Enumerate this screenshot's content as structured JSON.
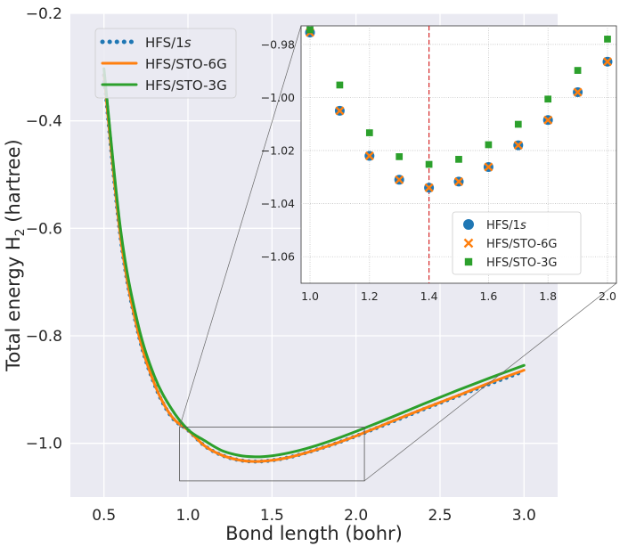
{
  "chart_data": [
    {
      "type": "line",
      "xlabel": "Bond length (bohr)",
      "ylabel": "Total energy H",
      "ylabel_subscript": "2",
      "ylabel_unit": " (hartree)",
      "xlim": [
        0.3,
        3.2
      ],
      "ylim": [
        -1.1,
        -0.2
      ],
      "xticks": [
        0.5,
        1.0,
        1.5,
        2.0,
        2.5,
        3.0
      ],
      "xtick_labels": [
        "0.5",
        "1.0",
        "1.5",
        "2.0",
        "2.5",
        "3.0"
      ],
      "yticks": [
        -1.0,
        -0.8,
        -0.6,
        -0.4,
        -0.2
      ],
      "ytick_labels": [
        "−1.0",
        "−0.8",
        "−0.6",
        "−0.4",
        "−0.2"
      ],
      "grid": true,
      "legend_position": "upper-left",
      "series": [
        {
          "name": "HFS/1s",
          "name_main": "HFS/1",
          "name_italic": "s",
          "style": "dotted",
          "color": "#1f77b4",
          "x": [
            0.5,
            0.6,
            0.7,
            0.8,
            0.9,
            1.0,
            1.1,
            1.2,
            1.3,
            1.4,
            1.5,
            1.6,
            1.7,
            1.8,
            1.9,
            2.0,
            2.2,
            2.4,
            2.6,
            2.8,
            3.0
          ],
          "y": [
            -0.315,
            -0.62,
            -0.79,
            -0.89,
            -0.95,
            -0.9755,
            -1.005,
            -1.022,
            -1.031,
            -1.034,
            -1.0317,
            -1.0262,
            -1.018,
            -1.0085,
            -0.998,
            -0.9865,
            -0.962,
            -0.937,
            -0.913,
            -0.889,
            -0.866
          ]
        },
        {
          "name": "HFS/STO-6G",
          "style": "solid",
          "color": "#ff7f0e",
          "x": [
            0.5,
            0.6,
            0.7,
            0.8,
            0.9,
            1.0,
            1.1,
            1.2,
            1.3,
            1.4,
            1.5,
            1.6,
            1.7,
            1.8,
            1.9,
            2.0,
            2.2,
            2.4,
            2.6,
            2.8,
            3.0
          ],
          "y": [
            -0.314,
            -0.619,
            -0.789,
            -0.889,
            -0.949,
            -0.9755,
            -1.005,
            -1.022,
            -1.031,
            -1.034,
            -1.0317,
            -1.0262,
            -1.018,
            -1.0085,
            -0.998,
            -0.9865,
            -0.961,
            -0.936,
            -0.912,
            -0.887,
            -0.864
          ]
        },
        {
          "name": "HFS/STO-3G",
          "style": "solid",
          "color": "#2ca02c",
          "x": [
            0.5,
            0.6,
            0.7,
            0.8,
            0.9,
            1.0,
            1.1,
            1.2,
            1.3,
            1.4,
            1.5,
            1.6,
            1.7,
            1.8,
            1.9,
            2.0,
            2.2,
            2.4,
            2.6,
            2.8,
            3.0
          ],
          "y": [
            -0.303,
            -0.605,
            -0.775,
            -0.875,
            -0.935,
            -0.9745,
            -0.9953,
            -1.0133,
            -1.0223,
            -1.0252,
            -1.0233,
            -1.0178,
            -1.0101,
            -1.0006,
            -0.9898,
            -0.978,
            -0.953,
            -0.927,
            -0.902,
            -0.878,
            -0.855
          ]
        }
      ],
      "zoom_box": {
        "x": [
          0.95,
          2.05
        ],
        "y": [
          -1.07,
          -0.97
        ]
      }
    },
    {
      "type": "scatter",
      "xlim": [
        0.97,
        2.03
      ],
      "ylim": [
        -1.07,
        -0.973
      ],
      "xticks": [
        1.0,
        1.2,
        1.4,
        1.6,
        1.8,
        2.0
      ],
      "xtick_labels": [
        "1.0",
        "1.2",
        "1.4",
        "1.6",
        "1.8",
        "2.0"
      ],
      "yticks": [
        -1.06,
        -1.04,
        -1.02,
        -1.0,
        -0.98
      ],
      "ytick_labels": [
        "−1.06",
        "−1.04",
        "−1.02",
        "−1.00",
        "−0.98"
      ],
      "grid": true,
      "vline": {
        "x": 1.4,
        "color": "#d62728",
        "style": "dashed"
      },
      "legend_position": "lower-right",
      "series": [
        {
          "name": "HFS/1s",
          "name_main": "HFS/1",
          "name_italic": "s",
          "marker": "circle",
          "color": "#1f77b4",
          "x": [
            1.0,
            1.1,
            1.2,
            1.3,
            1.4,
            1.5,
            1.6,
            1.7,
            1.8,
            1.9,
            2.0
          ],
          "y": [
            -0.9755,
            -1.005,
            -1.022,
            -1.031,
            -1.034,
            -1.0317,
            -1.0262,
            -1.018,
            -1.0085,
            -0.998,
            -0.9865
          ]
        },
        {
          "name": "HFS/STO-6G",
          "marker": "x",
          "color": "#ff7f0e",
          "x": [
            1.0,
            1.1,
            1.2,
            1.3,
            1.4,
            1.5,
            1.6,
            1.7,
            1.8,
            1.9,
            2.0
          ],
          "y": [
            -0.9755,
            -1.005,
            -1.022,
            -1.031,
            -1.034,
            -1.0317,
            -1.0262,
            -1.018,
            -1.0085,
            -0.998,
            -0.9865
          ]
        },
        {
          "name": "HFS/STO-3G",
          "marker": "square",
          "color": "#2ca02c",
          "x": [
            1.0,
            1.1,
            1.2,
            1.3,
            1.4,
            1.5,
            1.6,
            1.7,
            1.8,
            1.9,
            2.0
          ],
          "y": [
            -0.9745,
            -0.9953,
            -1.0133,
            -1.0223,
            -1.0252,
            -1.0233,
            -1.0178,
            -1.0101,
            -1.0006,
            -0.9898,
            -0.978
          ]
        }
      ]
    }
  ]
}
